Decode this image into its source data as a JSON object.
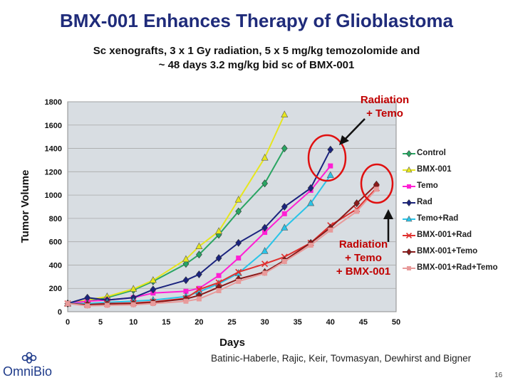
{
  "slide": {
    "title": "BMX-001 Enhances Therapy of Glioblastoma",
    "subtitle_line1": "Sc xenografts, 3 x 1 Gy radiation, 5 x 5 mg/kg temozolomide and",
    "subtitle_line2": "~ 48 days 3.2 mg/kg bid sc of BMX-001",
    "annotation_top_line1": "Radiation",
    "annotation_top_line2": "+ Temo",
    "annotation_mid_line1": "Radiation",
    "annotation_mid_line2": "+ Temo",
    "annotation_mid_line3": "+ BMX-001",
    "credits": "Batinic-Haberle, Rajic, Keir, Tovmasyan, Dewhirst and Bigner",
    "page_number": "16",
    "logo_text": "OmniBio",
    "accent_color": "#1f2b7a",
    "annotation_color": "#c00000"
  },
  "chart_data": {
    "type": "line",
    "xlabel": "Days",
    "ylabel": "Tumor Volume",
    "xlim": [
      0,
      50
    ],
    "ylim": [
      0,
      1800
    ],
    "xticks": [
      0,
      5,
      10,
      15,
      20,
      25,
      30,
      35,
      40,
      45,
      50
    ],
    "yticks": [
      0,
      200,
      400,
      600,
      800,
      1000,
      1200,
      1400,
      1600,
      1800
    ],
    "grid": true,
    "legend_position": "right",
    "series": [
      {
        "name": "Control",
        "color": "#2aa563",
        "marker": "diamond",
        "x": [
          0,
          3,
          6,
          10,
          13,
          18,
          20,
          23,
          26,
          30,
          33
        ],
        "y": [
          70,
          95,
          120,
          185,
          260,
          410,
          490,
          660,
          860,
          1100,
          1400
        ]
      },
      {
        "name": "BMX-001",
        "color": "#e6e61e",
        "marker": "triangle",
        "x": [
          0,
          3,
          6,
          10,
          13,
          18,
          20,
          23,
          26,
          30,
          33
        ],
        "y": [
          70,
          100,
          130,
          195,
          270,
          450,
          560,
          690,
          960,
          1320,
          1690
        ]
      },
      {
        "name": "Temo",
        "color": "#ff1fd4",
        "marker": "square",
        "x": [
          0,
          3,
          6,
          10,
          13,
          18,
          20,
          23,
          26,
          30,
          33,
          37,
          40
        ],
        "y": [
          70,
          90,
          100,
          120,
          160,
          175,
          200,
          310,
          460,
          680,
          840,
          1040,
          1250
        ]
      },
      {
        "name": "Rad",
        "color": "#1a237e",
        "marker": "diamond",
        "x": [
          0,
          3,
          6,
          10,
          13,
          18,
          20,
          23,
          26,
          30,
          33,
          37,
          40
        ],
        "y": [
          70,
          120,
          100,
          120,
          190,
          270,
          320,
          460,
          590,
          720,
          900,
          1060,
          1390
        ]
      },
      {
        "name": "Temo+Rad",
        "color": "#29c4e8",
        "marker": "triangle",
        "x": [
          0,
          3,
          6,
          10,
          13,
          18,
          20,
          23,
          26,
          30,
          33,
          37,
          40
        ],
        "y": [
          70,
          70,
          80,
          90,
          100,
          130,
          170,
          240,
          330,
          520,
          720,
          930,
          1170
        ]
      },
      {
        "name": "BMX-001+Rad",
        "color": "#e0312f",
        "marker": "x",
        "x": [
          0,
          3,
          6,
          10,
          13,
          18,
          20,
          23,
          26,
          30,
          33,
          37,
          40,
          44,
          47
        ],
        "y": [
          70,
          60,
          70,
          75,
          85,
          115,
          190,
          250,
          340,
          410,
          470,
          590,
          740,
          880,
          1060
        ]
      },
      {
        "name": "BMX-001+Temo",
        "color": "#8b1a1a",
        "marker": "diamond",
        "x": [
          0,
          3,
          6,
          10,
          13,
          18,
          20,
          23,
          26,
          30,
          33,
          37,
          40,
          44,
          47
        ],
        "y": [
          70,
          60,
          65,
          70,
          80,
          110,
          140,
          210,
          280,
          340,
          440,
          590,
          720,
          930,
          1090
        ]
      },
      {
        "name": "BMX-001+Rad+Temo",
        "color": "#e89a9a",
        "marker": "square",
        "x": [
          0,
          3,
          6,
          10,
          13,
          18,
          20,
          23,
          26,
          30,
          33,
          37,
          40,
          44,
          47
        ],
        "y": [
          70,
          50,
          55,
          60,
          70,
          90,
          110,
          180,
          260,
          330,
          430,
          570,
          700,
          860,
          1050
        ]
      }
    ]
  }
}
